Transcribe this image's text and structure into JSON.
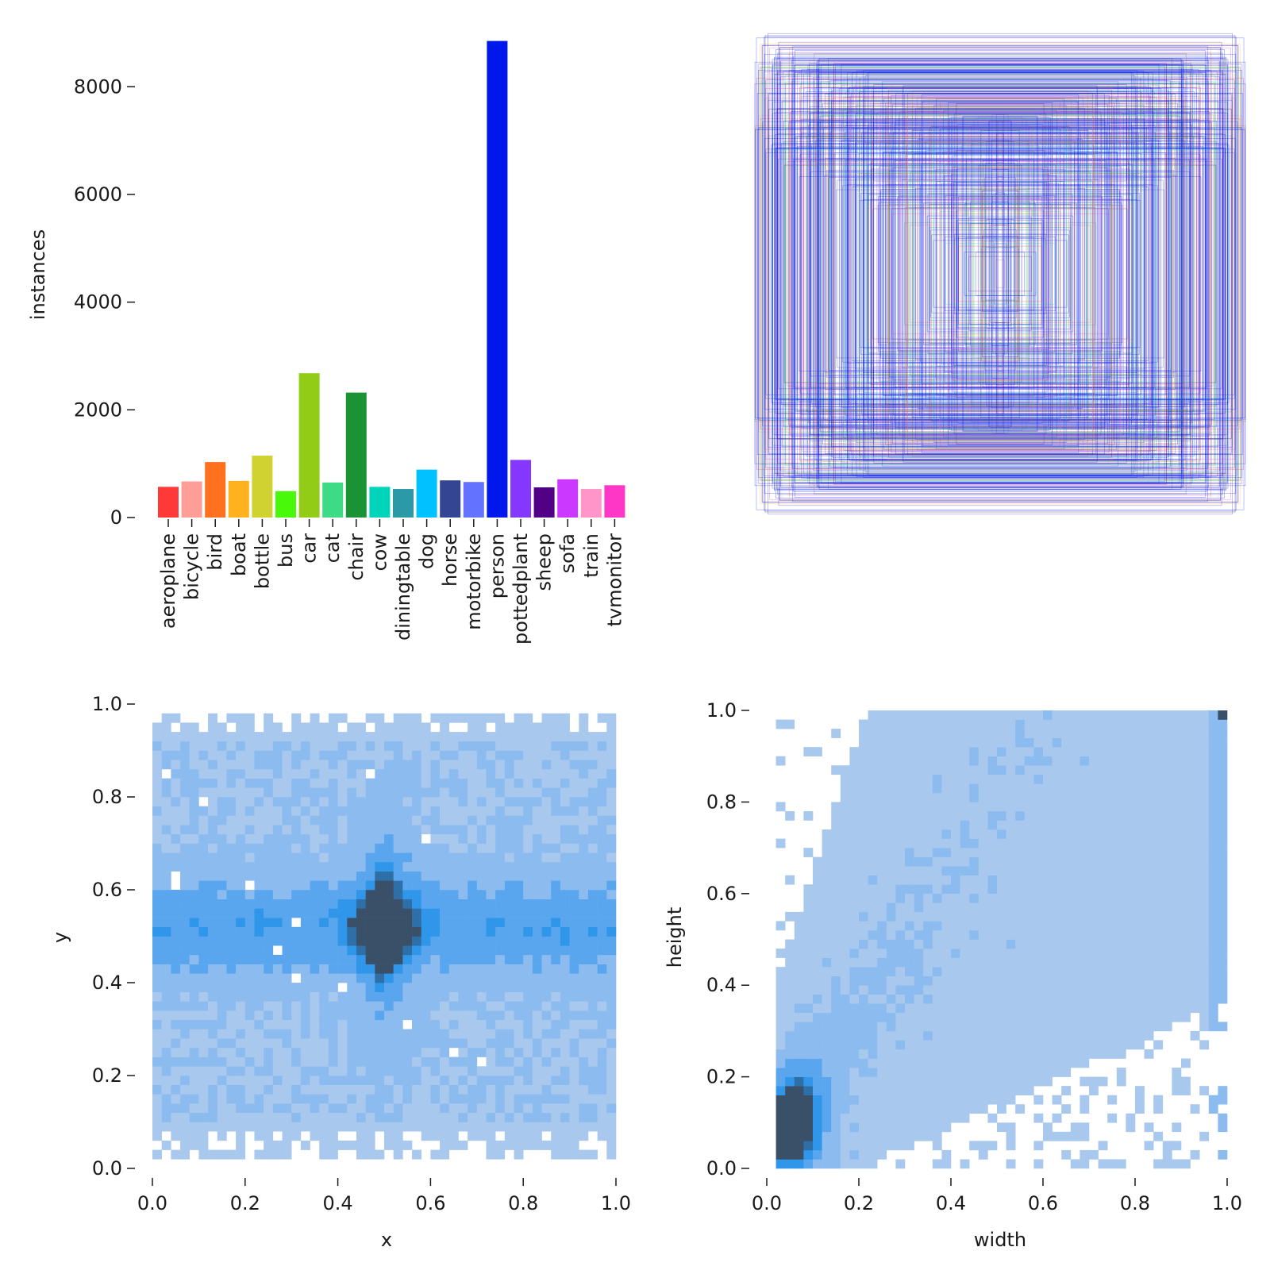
{
  "chart_data": [
    {
      "type": "bar",
      "ylabel": "instances",
      "ylim": [
        0,
        8800
      ],
      "yticks": [
        "0",
        "2000",
        "4000",
        "6000",
        "8000"
      ],
      "categories": [
        "aeroplane",
        "bicycle",
        "bird",
        "boat",
        "bottle",
        "bus",
        "car",
        "cat",
        "chair",
        "cow",
        "diningtable",
        "dog",
        "horse",
        "motorbike",
        "person",
        "pottedplant",
        "sheep",
        "sofa",
        "train",
        "tvmonitor"
      ],
      "values": [
        570,
        670,
        1030,
        680,
        1150,
        490,
        2680,
        650,
        2320,
        570,
        530,
        890,
        690,
        660,
        8850,
        1070,
        560,
        710,
        530,
        600
      ],
      "colors": [
        "#ff3838",
        "#ff9d97",
        "#ff701f",
        "#ffb21d",
        "#cfd231",
        "#48f90a",
        "#92cc17",
        "#3ddb86",
        "#1a9334",
        "#00d4bb",
        "#2c99a8",
        "#00c2ff",
        "#344593",
        "#6473ff",
        "#0018ec",
        "#8438ff",
        "#520085",
        "#cb38ff",
        "#ff95c8",
        "#ff37c7"
      ]
    },
    {
      "type": "boxes",
      "description_free": true,
      "box_count_hint": 600,
      "palette": [
        "#ff3838",
        "#ff9d97",
        "#ff701f",
        "#ffb21d",
        "#cfd231",
        "#48f90a",
        "#92cc17",
        "#3ddb86",
        "#1a9334",
        "#00d4bb",
        "#2c99a8",
        "#00c2ff",
        "#344593",
        "#6473ff",
        "#0018ec",
        "#8438ff",
        "#520085",
        "#cb38ff",
        "#ff95c8",
        "#ff37c7"
      ]
    },
    {
      "type": "heatmap",
      "xlabel": "x",
      "ylabel": "y",
      "xlim": [
        0,
        1
      ],
      "ylim": [
        0,
        1
      ],
      "xticks": [
        "0.0",
        "0.2",
        "0.4",
        "0.6",
        "0.8",
        "1.0"
      ],
      "yticks": [
        "0.0",
        "0.2",
        "0.4",
        "0.6",
        "0.8",
        "1.0"
      ],
      "bins": 50,
      "center": [
        0.5,
        0.52
      ]
    },
    {
      "type": "heatmap",
      "xlabel": "width",
      "ylabel": "height",
      "xlim": [
        0,
        1
      ],
      "ylim": [
        0,
        1
      ],
      "xticks": [
        "0.0",
        "0.2",
        "0.4",
        "0.6",
        "0.8",
        "1.0"
      ],
      "yticks": [
        "0.0",
        "0.2",
        "0.4",
        "0.6",
        "0.8",
        "1.0"
      ],
      "bins": 50,
      "mode": [
        0.06,
        0.1
      ]
    }
  ]
}
